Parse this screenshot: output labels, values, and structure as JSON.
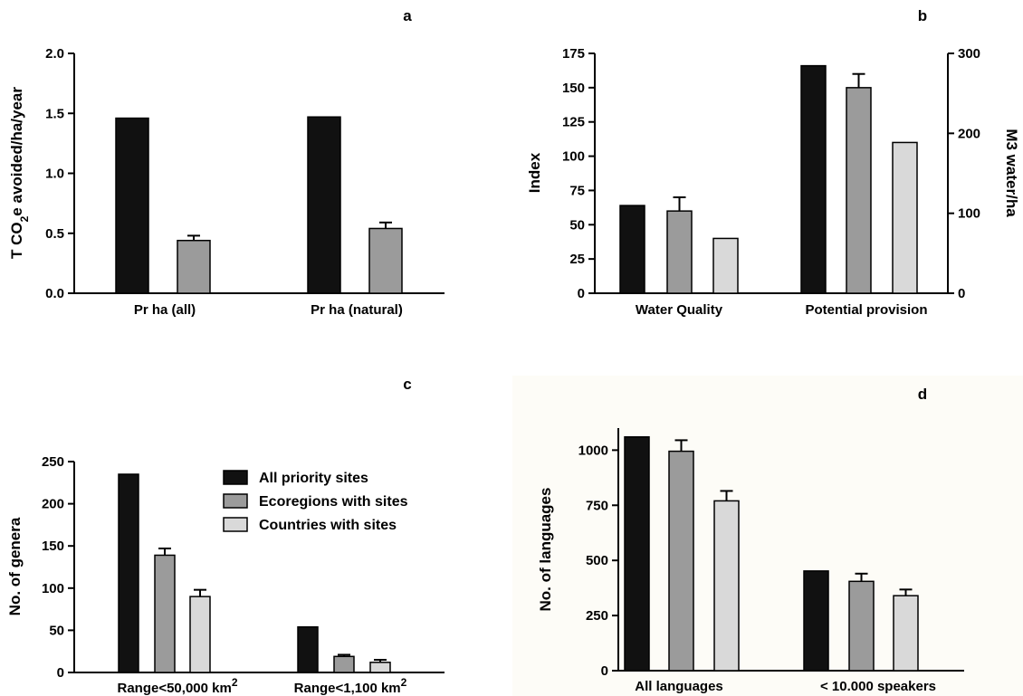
{
  "colors": {
    "series_fills": [
      "#111111",
      "#9b9b9b",
      "#d9d9d9"
    ],
    "stroke": "#000000",
    "panel_d_background": "#fdfcf7"
  },
  "legend": {
    "placement": "top-right of panel c",
    "items": [
      "All priority sites",
      "Ecoregions with sites",
      "Countries with sites"
    ]
  },
  "chart_data": [
    {
      "panel": "a",
      "type": "bar",
      "ylabel": "T CO2e avoided/ha/year",
      "ylabel_parts": {
        "main": "T CO",
        "sub": "2",
        "rest": "e avoided/ha/year"
      },
      "ylim": [
        0,
        2.0
      ],
      "ytick_labels": [
        "0.0",
        "0.5",
        "1.0",
        "1.5",
        "2.0"
      ],
      "categories": [
        "Pr ha (all)",
        "Pr ha (natural)"
      ],
      "series": [
        {
          "values": [
            1.46,
            1.47
          ]
        },
        {
          "values": [
            0.44,
            0.54
          ],
          "errors": [
            0.04,
            0.05
          ]
        }
      ]
    },
    {
      "panel": "b",
      "type": "bar",
      "ylabel": "Index",
      "ylabel_right": "M3 water/ha",
      "ylim": [
        0,
        175
      ],
      "ylim_right": [
        0,
        300
      ],
      "ytick_labels": [
        "0",
        "25",
        "50",
        "75",
        "100",
        "125",
        "150",
        "175"
      ],
      "ytick_labels_right": [
        "0",
        "100",
        "200",
        "300"
      ],
      "categories": [
        "Water Quality",
        "Potential provision"
      ],
      "series": [
        {
          "values": [
            64,
            166
          ]
        },
        {
          "values": [
            60,
            150
          ],
          "errors": [
            10,
            10
          ]
        },
        {
          "values": [
            40,
            110
          ]
        }
      ]
    },
    {
      "panel": "c",
      "type": "bar",
      "ylabel": "No. of genera",
      "ylim": [
        0,
        250
      ],
      "ytick_labels": [
        "0",
        "50",
        "100",
        "150",
        "200",
        "250"
      ],
      "categories": [
        "Range<50,000 km2",
        "Range<1,100 km2"
      ],
      "category_parts": [
        {
          "main": "Range<50,000 km",
          "sup": "2"
        },
        {
          "main": "Range<1,100 km",
          "sup": "2"
        }
      ],
      "series": [
        {
          "values": [
            235,
            54
          ]
        },
        {
          "values": [
            139,
            19
          ],
          "errors": [
            8,
            2
          ]
        },
        {
          "values": [
            90,
            12
          ],
          "errors": [
            8,
            3
          ]
        }
      ]
    },
    {
      "panel": "d",
      "type": "bar",
      "ylabel": "No. of languages",
      "ylim": [
        0,
        1100
      ],
      "ytick_labels": [
        "0",
        "250",
        "500",
        "750",
        "1000"
      ],
      "categories": [
        "All languages",
        "< 10.000 speakers"
      ],
      "series": [
        {
          "values": [
            1060,
            452
          ]
        },
        {
          "values": [
            995,
            405
          ],
          "errors": [
            50,
            35
          ]
        },
        {
          "values": [
            770,
            340
          ],
          "errors": [
            45,
            28
          ]
        }
      ]
    }
  ]
}
